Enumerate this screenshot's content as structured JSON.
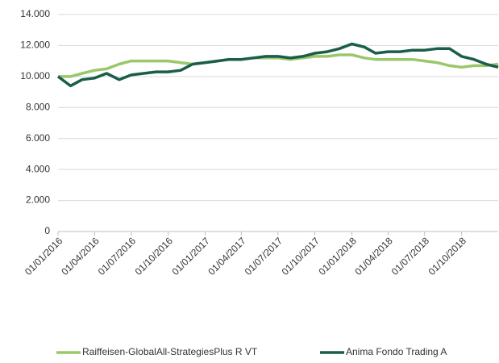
{
  "chart_data": {
    "type": "line",
    "x": [
      "01/01/2016",
      "01/02/2016",
      "01/03/2016",
      "01/04/2016",
      "01/05/2016",
      "01/06/2016",
      "01/07/2016",
      "01/08/2016",
      "01/09/2016",
      "01/10/2016",
      "01/11/2016",
      "01/12/2016",
      "01/01/2017",
      "01/02/2017",
      "01/03/2017",
      "01/04/2017",
      "01/05/2017",
      "01/06/2017",
      "01/07/2017",
      "01/08/2017",
      "01/09/2017",
      "01/10/2017",
      "01/11/2017",
      "01/12/2017",
      "01/01/2018",
      "01/02/2018",
      "01/03/2018",
      "01/04/2018",
      "01/05/2018",
      "01/06/2018",
      "01/07/2018",
      "01/08/2018",
      "01/09/2018",
      "01/10/2018",
      "01/11/2018",
      "01/12/2018",
      "31/12/2018"
    ],
    "series": [
      {
        "name": "Raiffeisen-GlobalAll-StrategiesPlus R VT",
        "color": "#9bc76b",
        "values": [
          10000,
          10000,
          10200,
          10400,
          10500,
          10800,
          11000,
          11000,
          11000,
          11000,
          10900,
          10800,
          10900,
          11000,
          11100,
          11100,
          11200,
          11200,
          11200,
          11100,
          11200,
          11300,
          11300,
          11400,
          11400,
          11200,
          11100,
          11100,
          11100,
          11100,
          11000,
          10900,
          10700,
          10600,
          10700,
          10700,
          10800
        ]
      },
      {
        "name": "Anima Fondo Trading A",
        "color": "#1a5e4a",
        "values": [
          10000,
          9400,
          9800,
          9900,
          10200,
          9800,
          10100,
          10200,
          10300,
          10300,
          10400,
          10800,
          10900,
          11000,
          11100,
          11100,
          11200,
          11300,
          11300,
          11200,
          11300,
          11500,
          11600,
          11800,
          12100,
          11900,
          11500,
          11600,
          11600,
          11700,
          11700,
          11800,
          11800,
          11300,
          11100,
          10800,
          10600
        ]
      }
    ],
    "xlim": [
      "01/01/2016",
      "31/12/2018"
    ],
    "xticks": [
      "01/01/2016",
      "01/04/2016",
      "01/07/2016",
      "01/10/2016",
      "01/01/2017",
      "01/04/2017",
      "01/07/2017",
      "01/10/2017",
      "01/01/2018",
      "01/04/2018",
      "01/07/2018",
      "01/10/2018"
    ],
    "ylim": [
      0,
      14000
    ],
    "yticks": [
      0,
      {
        "value": 2000,
        "label": "2.000"
      },
      {
        "value": 4000,
        "label": "4.000"
      },
      {
        "value": 6000,
        "label": "6.000"
      },
      {
        "value": 8000,
        "label": "8.000"
      },
      {
        "value": 10000,
        "label": "10.000"
      },
      {
        "value": 12000,
        "label": "12.000"
      },
      {
        "value": 14000,
        "label": "14.000"
      }
    ],
    "grid": true,
    "legend": "bottom"
  }
}
